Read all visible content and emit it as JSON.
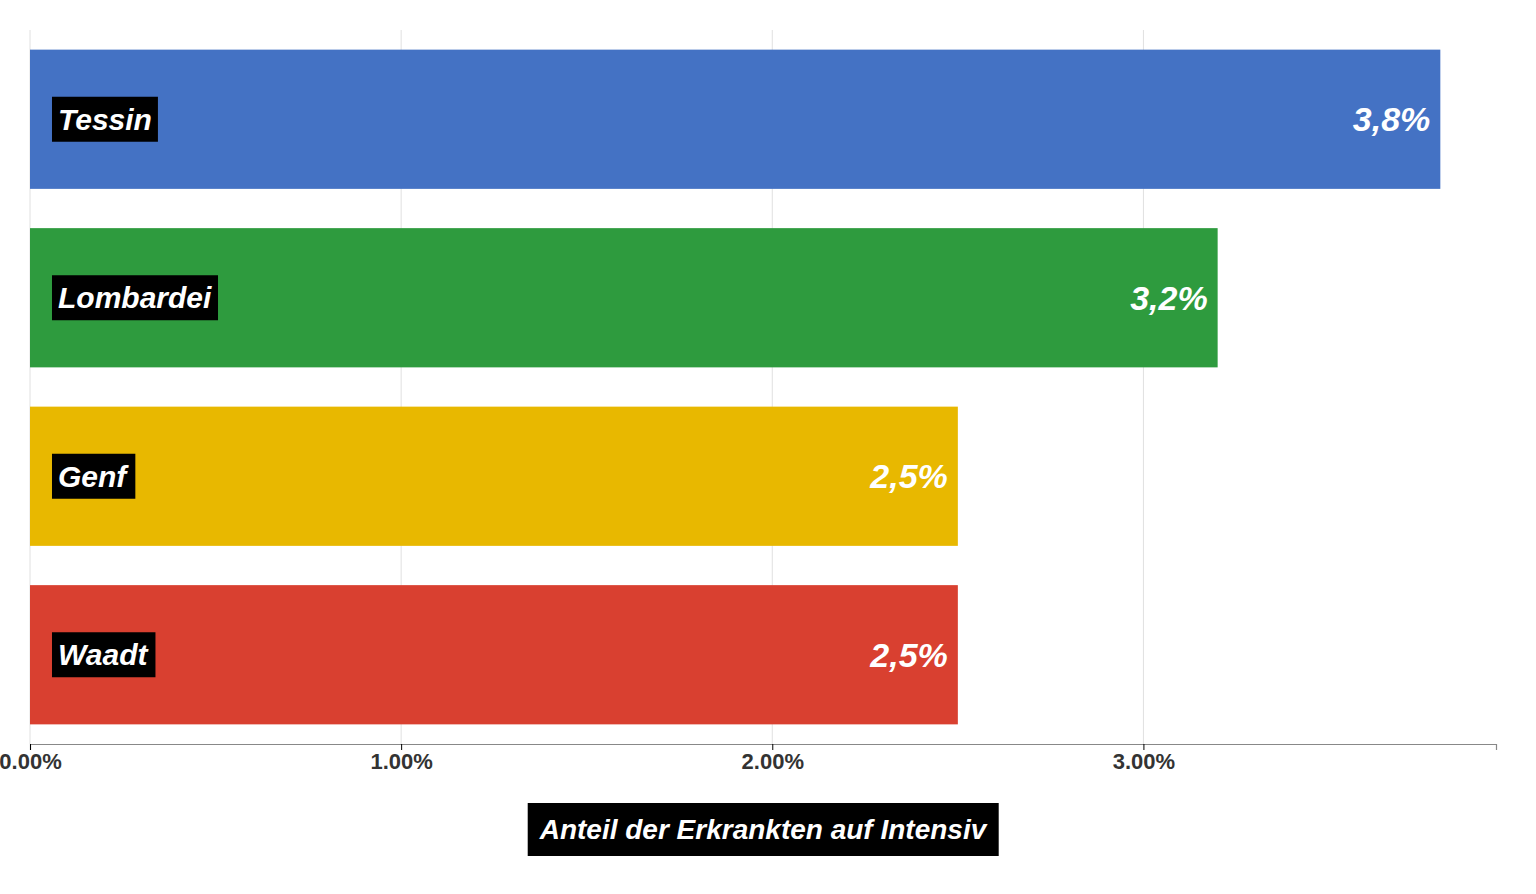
{
  "chart_data": {
    "type": "bar",
    "orientation": "horizontal",
    "categories": [
      "Tessin",
      "Lombardei",
      "Genf",
      "Waadt"
    ],
    "values": [
      3.8,
      3.2,
      2.5,
      2.5
    ],
    "value_labels": [
      "3,8%",
      "3,2%",
      "2,5%",
      "2,5%"
    ],
    "colors": [
      "#4472C4",
      "#2E9B3E",
      "#E8B800",
      "#D94030"
    ],
    "xlabel": "Anteil der Erkrankten auf Intensiv",
    "xlim": [
      0,
      3.95
    ],
    "xticks": [
      {
        "value": 0.0,
        "label": "0.00%"
      },
      {
        "value": 1.0,
        "label": "1.00%"
      },
      {
        "value": 2.0,
        "label": "2.00%"
      },
      {
        "value": 3.0,
        "label": "3.00%"
      }
    ],
    "grid": true,
    "data_labels": true
  }
}
